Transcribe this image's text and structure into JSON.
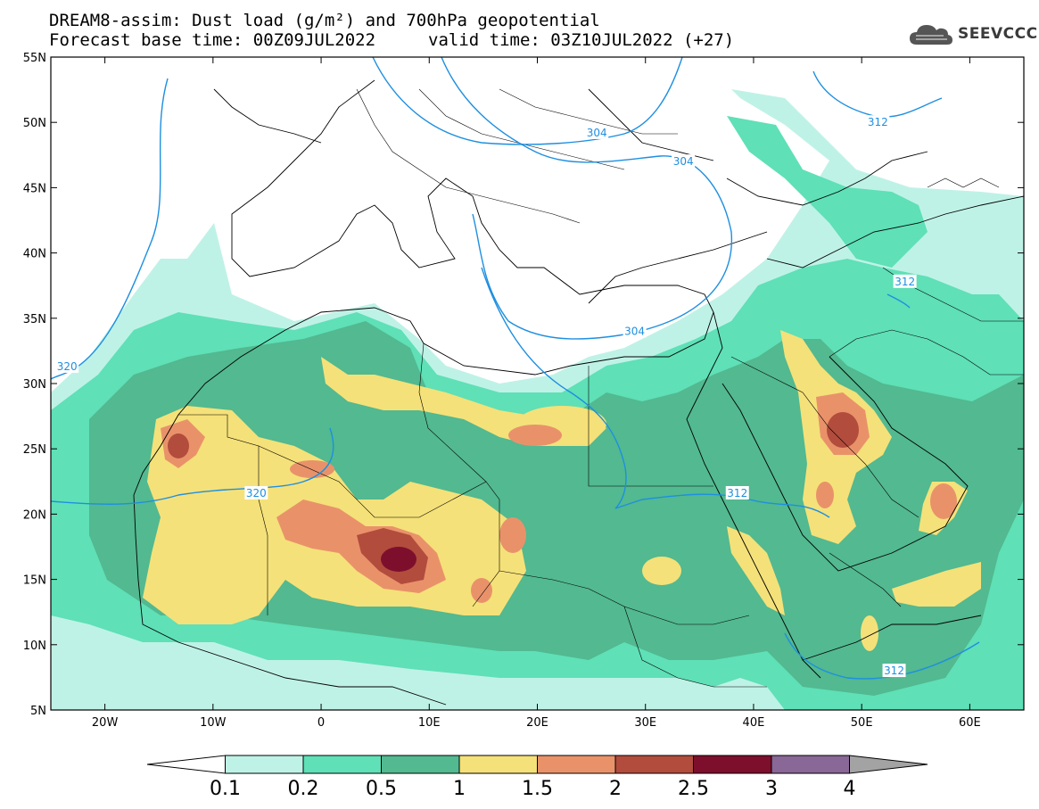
{
  "title": {
    "line1": "DREAM8-assim: Dust load (g/m²) and 700hPa geopotential",
    "line2": "Forecast base time: 00Z09JUL2022",
    "valid": "valid time: 03Z10JUL2022 (+27)"
  },
  "logo": {
    "text": "SEEVCCC",
    "icon": "cloud-icon"
  },
  "map": {
    "lon_range": [
      -25,
      65
    ],
    "lat_range": [
      5,
      55
    ],
    "lon_ticks": [
      {
        "value": -20,
        "label": "20W"
      },
      {
        "value": -10,
        "label": "10W"
      },
      {
        "value": 0,
        "label": "0"
      },
      {
        "value": 10,
        "label": "10E"
      },
      {
        "value": 20,
        "label": "20E"
      },
      {
        "value": 30,
        "label": "30E"
      },
      {
        "value": 40,
        "label": "40E"
      },
      {
        "value": 50,
        "label": "50E"
      },
      {
        "value": 60,
        "label": "60E"
      }
    ],
    "lat_ticks": [
      {
        "value": 55,
        "label": "55N"
      },
      {
        "value": 50,
        "label": "50N"
      },
      {
        "value": 45,
        "label": "45N"
      },
      {
        "value": 40,
        "label": "40N"
      },
      {
        "value": 35,
        "label": "35N"
      },
      {
        "value": 30,
        "label": "30N"
      },
      {
        "value": 25,
        "label": "25N"
      },
      {
        "value": 20,
        "label": "20N"
      },
      {
        "value": 15,
        "label": "15N"
      },
      {
        "value": 10,
        "label": "10N"
      },
      {
        "value": 5,
        "label": "5N"
      }
    ],
    "contour_labels": [
      {
        "text": "304",
        "lon": 25.5,
        "lat": 49.2
      },
      {
        "text": "304",
        "lon": 33.5,
        "lat": 47.0
      },
      {
        "text": "304",
        "lon": 29.0,
        "lat": 34.0
      },
      {
        "text": "312",
        "lon": 51.5,
        "lat": 50.0
      },
      {
        "text": "312",
        "lon": 54.0,
        "lat": 37.8
      },
      {
        "text": "312",
        "lon": 38.5,
        "lat": 21.6
      },
      {
        "text": "312",
        "lon": 53.0,
        "lat": 8.0
      },
      {
        "text": "320",
        "lon": -23.5,
        "lat": 31.3
      },
      {
        "text": "320",
        "lon": -6.0,
        "lat": 21.6
      }
    ]
  },
  "colorbar": {
    "labels": [
      "0.1",
      "0.2",
      "0.5",
      "1",
      "1.5",
      "2",
      "2.5",
      "3",
      "4"
    ],
    "colors": [
      "#ffffff",
      "#bff2e6",
      "#5fe0b7",
      "#52b990",
      "#f5e179",
      "#e9926a",
      "#b24c3d",
      "#7e0f2c",
      "#896796",
      "#a3a3a3"
    ]
  }
}
